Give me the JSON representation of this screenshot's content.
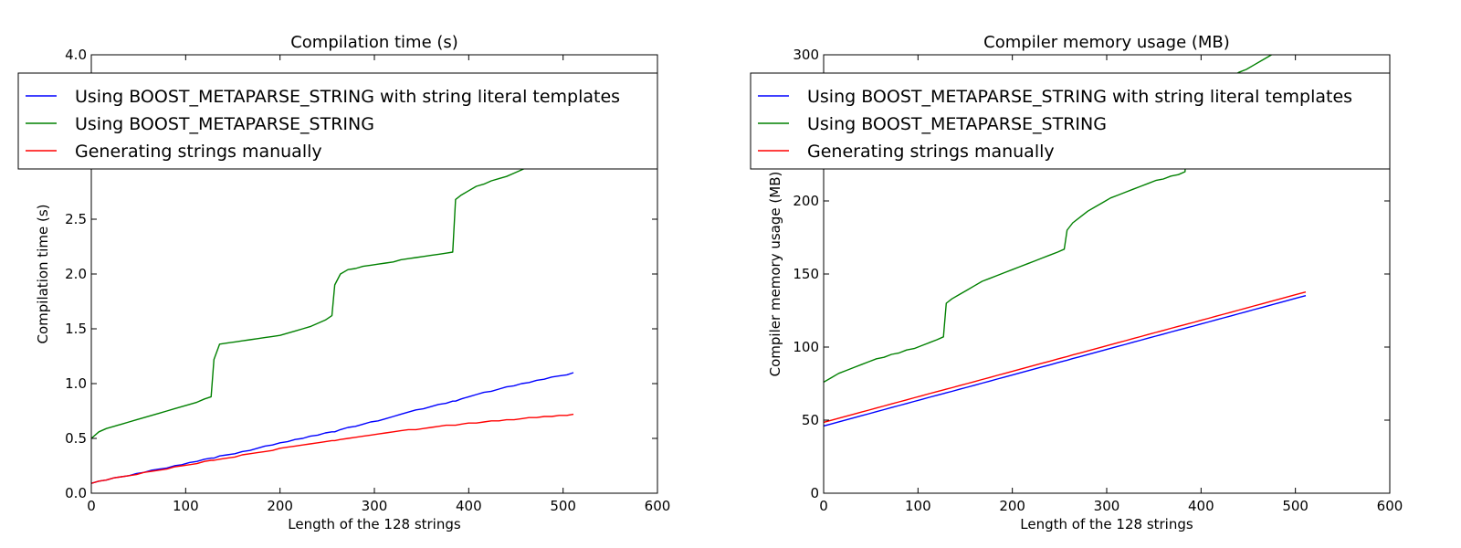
{
  "chart_data": [
    {
      "type": "line",
      "title": "Compilation time (s)",
      "xlabel": "Length of the 128 strings",
      "ylabel": "Compilation time (s)",
      "xlim": [
        0,
        600
      ],
      "ylim": [
        0,
        4
      ],
      "xticks": [
        0,
        100,
        200,
        300,
        400,
        500,
        600
      ],
      "xtick_labels": [
        "0",
        "100",
        "200",
        "300",
        "400",
        "500",
        "600"
      ],
      "yticks": [
        0,
        0.5,
        1,
        1.5,
        2,
        2.5,
        3,
        3.5,
        4
      ],
      "ytick_labels": [
        "0.0",
        "0.5",
        "1.0",
        "1.5",
        "2.0",
        "2.5",
        "3.0",
        "3.5",
        "4.0"
      ],
      "grid": false,
      "legend": "top-left",
      "x": [
        0,
        8,
        16,
        24,
        32,
        40,
        48,
        56,
        64,
        72,
        80,
        88,
        96,
        104,
        112,
        120,
        127,
        130,
        136,
        144,
        152,
        160,
        168,
        176,
        184,
        192,
        200,
        208,
        216,
        224,
        232,
        240,
        248,
        255,
        258,
        264,
        272,
        280,
        288,
        296,
        304,
        312,
        320,
        328,
        336,
        344,
        352,
        360,
        368,
        376,
        383,
        386,
        392,
        400,
        408,
        416,
        424,
        432,
        440,
        448,
        456,
        464,
        472,
        480,
        488,
        496,
        504,
        511
      ],
      "series": [
        {
          "name": "Using BOOST_METAPARSE_STRING with string literal templates",
          "color": "#0000ff",
          "values": [
            0.09,
            0.11,
            0.12,
            0.14,
            0.15,
            0.16,
            0.18,
            0.19,
            0.21,
            0.22,
            0.23,
            0.25,
            0.26,
            0.28,
            0.29,
            0.31,
            0.32,
            0.32,
            0.34,
            0.35,
            0.36,
            0.38,
            0.39,
            0.41,
            0.43,
            0.44,
            0.46,
            0.47,
            0.49,
            0.5,
            0.52,
            0.53,
            0.55,
            0.56,
            0.56,
            0.58,
            0.6,
            0.61,
            0.63,
            0.65,
            0.66,
            0.68,
            0.7,
            0.72,
            0.74,
            0.76,
            0.77,
            0.79,
            0.81,
            0.82,
            0.84,
            0.84,
            0.86,
            0.88,
            0.9,
            0.92,
            0.93,
            0.95,
            0.97,
            0.98,
            1.0,
            1.01,
            1.03,
            1.04,
            1.06,
            1.07,
            1.08,
            1.1
          ]
        },
        {
          "name": "Using BOOST_METAPARSE_STRING",
          "color": "#008000",
          "values": [
            0.5,
            0.56,
            0.59,
            0.61,
            0.63,
            0.65,
            0.67,
            0.69,
            0.71,
            0.73,
            0.75,
            0.77,
            0.79,
            0.81,
            0.83,
            0.86,
            0.88,
            1.22,
            1.36,
            1.37,
            1.38,
            1.39,
            1.4,
            1.41,
            1.42,
            1.43,
            1.44,
            1.46,
            1.48,
            1.5,
            1.52,
            1.55,
            1.58,
            1.62,
            1.9,
            2.0,
            2.04,
            2.05,
            2.07,
            2.08,
            2.09,
            2.1,
            2.11,
            2.13,
            2.14,
            2.15,
            2.16,
            2.17,
            2.18,
            2.19,
            2.2,
            2.68,
            2.72,
            2.76,
            2.8,
            2.82,
            2.85,
            2.87,
            2.89,
            2.92,
            2.95,
            2.98,
            3.0,
            3.03,
            3.06,
            3.09,
            3.12,
            3.15
          ]
        },
        {
          "name": "Generating strings manually",
          "color": "#ff0000",
          "values": [
            0.09,
            0.11,
            0.12,
            0.14,
            0.15,
            0.16,
            0.17,
            0.19,
            0.2,
            0.21,
            0.22,
            0.24,
            0.25,
            0.26,
            0.27,
            0.29,
            0.3,
            0.3,
            0.31,
            0.32,
            0.33,
            0.35,
            0.36,
            0.37,
            0.38,
            0.39,
            0.41,
            0.42,
            0.43,
            0.44,
            0.45,
            0.46,
            0.47,
            0.48,
            0.48,
            0.49,
            0.5,
            0.51,
            0.52,
            0.53,
            0.54,
            0.55,
            0.56,
            0.57,
            0.58,
            0.58,
            0.59,
            0.6,
            0.61,
            0.62,
            0.62,
            0.62,
            0.63,
            0.64,
            0.64,
            0.65,
            0.66,
            0.66,
            0.67,
            0.67,
            0.68,
            0.69,
            0.69,
            0.7,
            0.7,
            0.71,
            0.71,
            0.72
          ]
        }
      ]
    },
    {
      "type": "line",
      "title": "Compiler memory usage (MB)",
      "xlabel": "Length of the 128 strings",
      "ylabel": "Compiler memory usage (MB)",
      "xlim": [
        0,
        600
      ],
      "ylim": [
        0,
        300
      ],
      "xticks": [
        0,
        100,
        200,
        300,
        400,
        500,
        600
      ],
      "xtick_labels": [
        "0",
        "100",
        "200",
        "300",
        "400",
        "500",
        "600"
      ],
      "yticks": [
        0,
        50,
        100,
        150,
        200,
        250,
        300
      ],
      "ytick_labels": [
        "0",
        "50",
        "100",
        "150",
        "200",
        "250",
        "300"
      ],
      "grid": false,
      "legend": "top-left",
      "x": [
        0,
        8,
        16,
        24,
        32,
        40,
        48,
        56,
        64,
        72,
        80,
        88,
        96,
        104,
        112,
        120,
        127,
        130,
        136,
        144,
        152,
        160,
        168,
        176,
        184,
        192,
        200,
        208,
        216,
        224,
        232,
        240,
        248,
        255,
        258,
        264,
        272,
        280,
        288,
        296,
        304,
        312,
        320,
        328,
        336,
        344,
        352,
        360,
        368,
        376,
        383,
        386,
        392,
        400,
        408,
        416,
        424,
        432,
        440,
        448,
        456,
        464,
        472,
        480,
        488,
        496,
        504,
        511
      ],
      "series": [
        {
          "name": "Using BOOST_METAPARSE_STRING with string literal templates",
          "color": "#0000ff",
          "values": [
            46,
            47.4,
            48.8,
            50.2,
            51.6,
            53,
            54.4,
            55.8,
            57.2,
            58.6,
            60,
            61.4,
            62.8,
            64.2,
            65.6,
            67,
            68.2,
            68.7,
            69.7,
            71.1,
            72.5,
            73.9,
            75.3,
            76.7,
            78.1,
            79.5,
            80.9,
            82.3,
            83.7,
            85.1,
            86.5,
            87.9,
            89.3,
            90.5,
            91,
            92.1,
            93.5,
            94.9,
            96.3,
            97.7,
            99.1,
            100.5,
            101.9,
            103.3,
            104.7,
            106.1,
            107.5,
            108.9,
            110.3,
            111.7,
            112.9,
            113.4,
            114.4,
            115.8,
            117.2,
            118.6,
            120,
            121.4,
            122.8,
            124.2,
            125.6,
            127,
            128.4,
            129.8,
            131.2,
            132.6,
            134,
            135.2
          ]
        },
        {
          "name": "Using BOOST_METAPARSE_STRING",
          "color": "#008000",
          "values": [
            76,
            79,
            82,
            84,
            86,
            88,
            90,
            92,
            93,
            95,
            96,
            98,
            99,
            101,
            103,
            105,
            107,
            130,
            133,
            136,
            139,
            142,
            145,
            147,
            149,
            151,
            153,
            155,
            157,
            159,
            161,
            163,
            165,
            167,
            180,
            185,
            189,
            193,
            196,
            199,
            202,
            204,
            206,
            208,
            210,
            212,
            214,
            215,
            217,
            218,
            220,
            262,
            268,
            273,
            277,
            280,
            283,
            285,
            288,
            290,
            293,
            296,
            299,
            302,
            305,
            308,
            311,
            314
          ]
        },
        {
          "name": "Generating strings manually",
          "color": "#ff0000",
          "values": [
            48.5,
            49.9,
            51.3,
            52.7,
            54.1,
            55.5,
            56.9,
            58.3,
            59.7,
            61.1,
            62.5,
            63.9,
            65.3,
            66.7,
            68.1,
            69.5,
            70.7,
            71.2,
            72.2,
            73.6,
            75,
            76.4,
            77.8,
            79.2,
            80.6,
            82,
            83.4,
            84.8,
            86.2,
            87.6,
            89,
            90.4,
            91.8,
            93,
            93.5,
            94.6,
            96,
            97.4,
            98.8,
            100.2,
            101.6,
            103,
            104.4,
            105.8,
            107.2,
            108.6,
            110,
            111.4,
            112.8,
            114.2,
            115.4,
            115.9,
            116.9,
            118.3,
            119.7,
            121.1,
            122.5,
            123.9,
            125.3,
            126.7,
            128.1,
            129.5,
            130.9,
            132.3,
            133.7,
            135.1,
            136.5,
            137.7
          ]
        }
      ]
    }
  ]
}
